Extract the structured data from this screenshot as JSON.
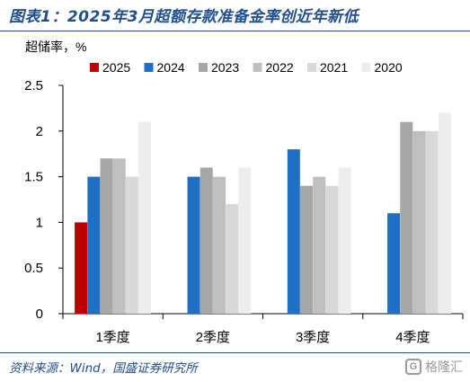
{
  "figure": {
    "title": "图表1：2025年3月超额存款准备金率创近年新低",
    "source": "资料来源：Wind，国盛证券研究所",
    "watermark_text": "格隆汇",
    "watermark_logo": "G"
  },
  "chart_data": {
    "type": "bar",
    "ylabel": "超储率，%",
    "xlabel": "",
    "ylim": [
      0,
      2.5
    ],
    "yticks": [
      "0",
      "0.5",
      "1",
      "1.5",
      "2",
      "2.5"
    ],
    "ytick_values": [
      0,
      0.5,
      1,
      1.5,
      2,
      2.5
    ],
    "categories": [
      "1季度",
      "2季度",
      "3季度",
      "4季度"
    ],
    "legend_position": "top",
    "grid": false,
    "series": [
      {
        "name": "2025",
        "color": "#c00000",
        "values": [
          1.0,
          null,
          null,
          null
        ]
      },
      {
        "name": "2024",
        "color": "#1f6fc5",
        "values": [
          1.5,
          1.5,
          1.8,
          1.1
        ]
      },
      {
        "name": "2023",
        "color": "#a6a6a6",
        "values": [
          1.7,
          1.6,
          1.4,
          2.1
        ]
      },
      {
        "name": "2022",
        "color": "#bfbfbf",
        "values": [
          1.7,
          1.5,
          1.5,
          2.0
        ]
      },
      {
        "name": "2021",
        "color": "#d9d9d9",
        "values": [
          1.5,
          1.2,
          1.4,
          2.0
        ]
      },
      {
        "name": "2020",
        "color": "#ededed",
        "values": [
          2.1,
          1.6,
          1.6,
          2.2
        ]
      }
    ]
  }
}
